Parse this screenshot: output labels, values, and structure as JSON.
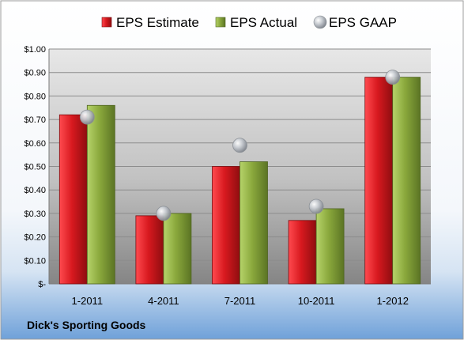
{
  "chart_data": {
    "type": "bar",
    "title": "",
    "xlabel": "",
    "ylabel": "",
    "categories": [
      "1-2011",
      "4-2011",
      "7-2011",
      "10-2011",
      "1-2012"
    ],
    "series": [
      {
        "name": "EPS Estimate",
        "kind": "bar",
        "color": "#c0161c",
        "values": [
          0.72,
          0.29,
          0.5,
          0.27,
          0.88
        ]
      },
      {
        "name": "EPS Actual",
        "kind": "bar",
        "color": "#8aa83c",
        "values": [
          0.76,
          0.3,
          0.52,
          0.32,
          0.88
        ]
      },
      {
        "name": "EPS GAAP",
        "kind": "marker",
        "color": "#a9adb3",
        "values": [
          0.71,
          0.3,
          0.59,
          0.33,
          0.88
        ]
      }
    ],
    "ylim": [
      0,
      1.0
    ],
    "ytick_values": [
      0,
      0.1,
      0.2,
      0.3,
      0.4,
      0.5,
      0.6,
      0.7,
      0.8,
      0.9,
      1.0
    ],
    "ytick_labels": [
      "$-",
      "$0.10",
      "$0.20",
      "$0.30",
      "$0.40",
      "$0.50",
      "$0.60",
      "$0.70",
      "$0.80",
      "$0.90",
      "$1.00"
    ],
    "grid": true,
    "legend_position": "top"
  },
  "corner_label": "Dick's Sporting Goods"
}
